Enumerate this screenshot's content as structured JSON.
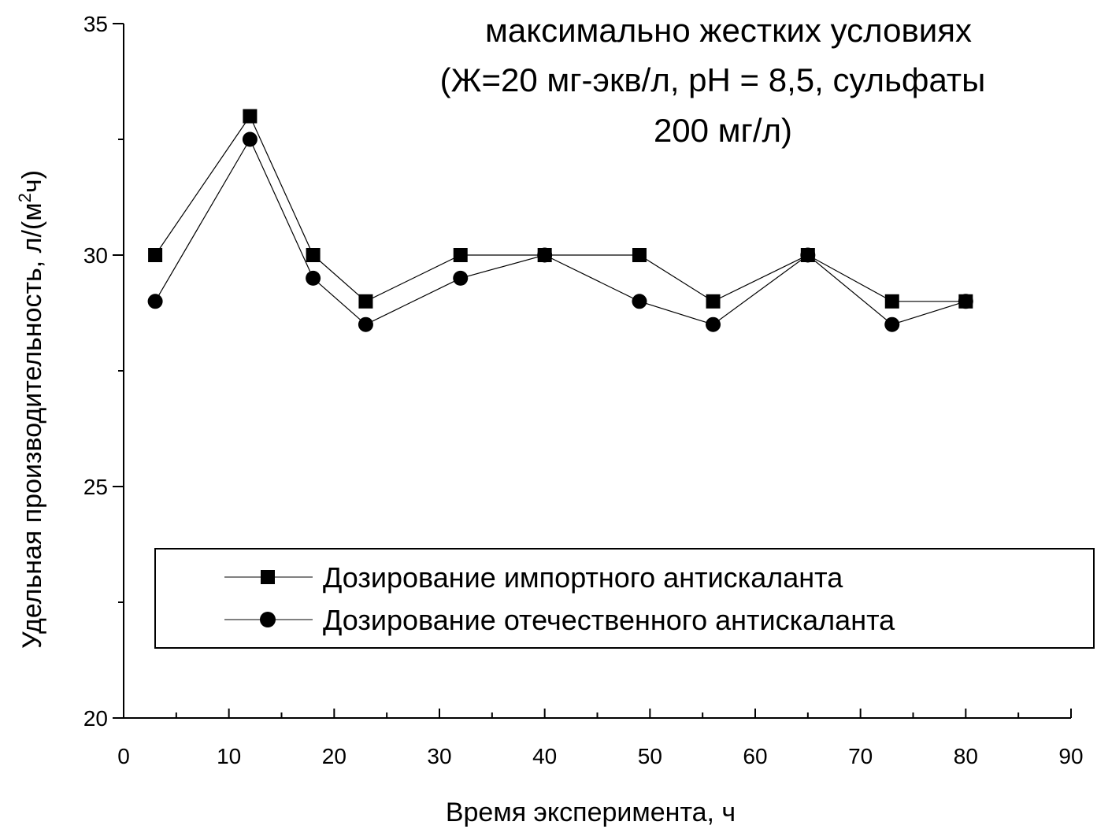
{
  "chart_data": {
    "type": "line",
    "title_lines": [
      "максимально жестких условиях",
      "(Ж=20 мг-экв/л, pH = 8,5, сульфаты",
      "200 мг/л)"
    ],
    "xlabel": "Время эксперимента, ч",
    "ylabel": {
      "main": "Удельная производительность, л/(м",
      "sup": "2",
      "tail": "ч)"
    },
    "xlim": [
      0,
      90
    ],
    "ylim": [
      20,
      35
    ],
    "xticks": [
      0,
      10,
      20,
      30,
      40,
      50,
      60,
      70,
      80,
      90
    ],
    "yticks": [
      20,
      25,
      30,
      35
    ],
    "legend_position": "lower-left",
    "grid": false,
    "series": [
      {
        "name": "Дозирование импортного антискаланта",
        "marker": "square",
        "color": "#000000",
        "x": [
          3,
          12,
          18,
          23,
          32,
          40,
          49,
          56,
          65,
          73,
          80
        ],
        "y": [
          30,
          33,
          30,
          29,
          30,
          30,
          30,
          29,
          30,
          29,
          29
        ]
      },
      {
        "name": "Дозирование отечественного антискаланта",
        "marker": "circle",
        "color": "#000000",
        "x": [
          3,
          12,
          18,
          23,
          32,
          40,
          49,
          56,
          65,
          73,
          80
        ],
        "y": [
          29,
          32.5,
          29.5,
          28.5,
          29.5,
          30,
          29,
          28.5,
          30,
          28.5,
          29
        ]
      }
    ]
  }
}
